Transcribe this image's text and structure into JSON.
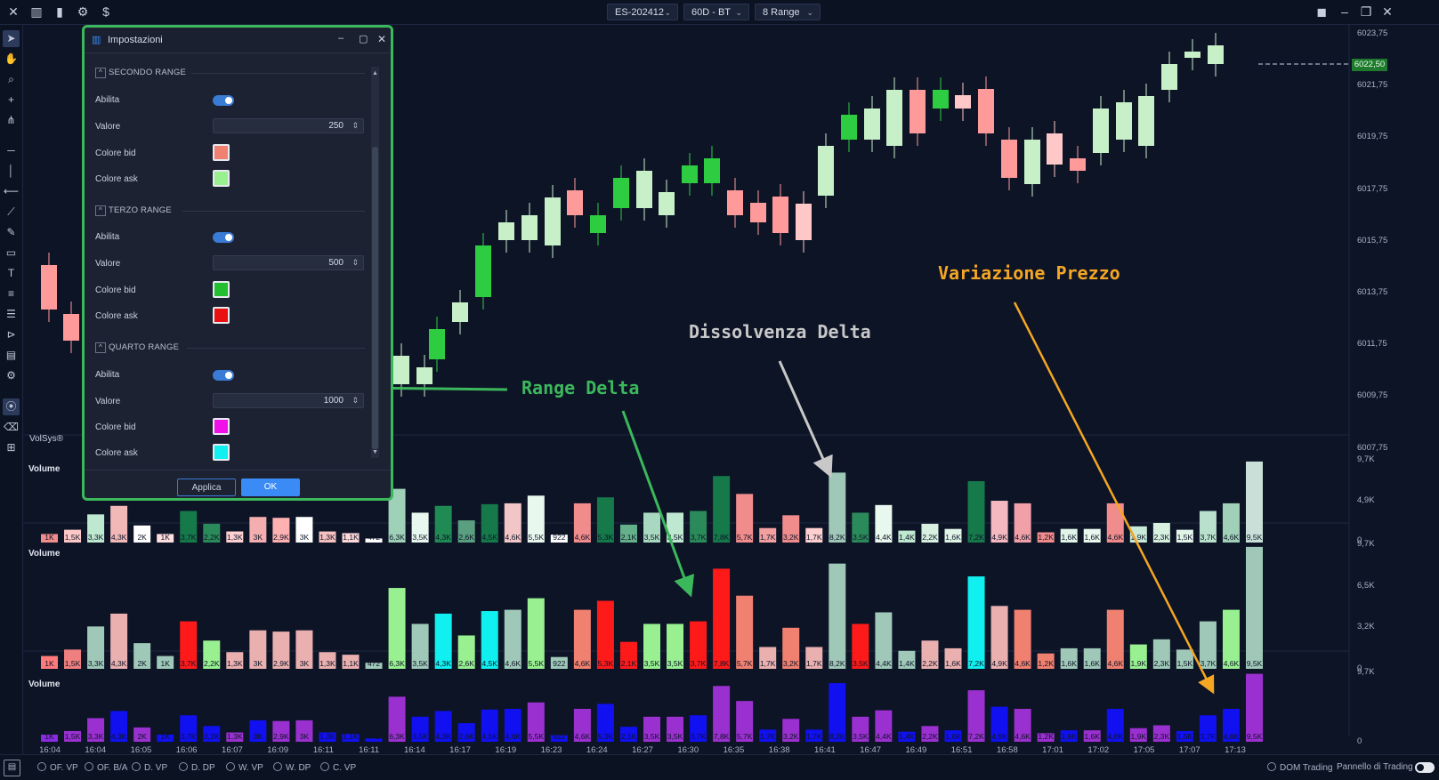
{
  "toolbar": {
    "symbol": "ES-202412",
    "timeframe": "60D - BT",
    "bar_type": "8 Range"
  },
  "dialog": {
    "title": "Impostazioni",
    "sections": [
      {
        "heading": "SECONDO RANGE",
        "enable_label": "Abilita",
        "value_label": "Valore",
        "value": "250",
        "bid_label": "Colore bid",
        "bid_color": "#f08070",
        "ask_label": "Colore ask",
        "ask_color": "#98f090"
      },
      {
        "heading": "TERZO RANGE",
        "enable_label": "Abilita",
        "value_label": "Valore",
        "value": "500",
        "bid_label": "Colore bid",
        "bid_color": "#22c030",
        "ask_label": "Colore ask",
        "ask_color": "#e81010"
      },
      {
        "heading": "QUARTO RANGE",
        "enable_label": "Abilita",
        "value_label": "Valore",
        "value": "1000",
        "bid_label": "Colore bid",
        "bid_color": "#f010e8",
        "ask_label": "Colore ask",
        "ask_color": "#10f0f0"
      }
    ],
    "apply_label": "Applica",
    "ok_label": "OK"
  },
  "indicator_label": "VolSys®",
  "annotations": {
    "range_delta": "Range Delta",
    "dissolvenza_delta": "Dissolvenza Delta",
    "variazione_prezzo": "Variazione Prezzo"
  },
  "colors": {
    "range_delta": "#3cb85c",
    "dissolvenza_delta": "#c8c8c8",
    "variazione_prezzo": "#f5a623"
  },
  "price_axis": {
    "labels": [
      "6023,75",
      "6021,75",
      "6019,75",
      "6017,75",
      "6015,75",
      "6013,75",
      "6011,75",
      "6009,75",
      "6007,75"
    ],
    "current_price": "6022,50"
  },
  "volume_panes": [
    {
      "title": "Volume",
      "axis": [
        "9,7K",
        "4,9K",
        "0"
      ]
    },
    {
      "title": "Volume",
      "axis": [
        "9,7K",
        "6,5K",
        "3,2K",
        "0"
      ]
    },
    {
      "title": "Volume",
      "axis": [
        "9,7K",
        "0"
      ]
    }
  ],
  "bottom_bar": {
    "items": [
      "OF. VP",
      "OF. B/A",
      "D. VP",
      "D. DP",
      "W. VP",
      "W. DP",
      "C. VP"
    ],
    "dom_trading": "DOM Trading",
    "pannello": "Pannello di Trading"
  },
  "chart_data": {
    "type": "table",
    "time_labels": [
      "16:04",
      "16:04",
      "16:05",
      "16:06",
      "16:07",
      "16:09",
      "16:11",
      "16:11",
      "16:14",
      "16:17",
      "16:19",
      "16:23",
      "16:24",
      "16:27",
      "16:30",
      "16:35",
      "16:38",
      "16:41",
      "16:47",
      "16:49",
      "16:51",
      "16:58",
      "17:01",
      "17:02",
      "17:05",
      "17:07",
      "17:13"
    ],
    "volume_labels": [
      "1K",
      "1,5K",
      "3,3K",
      "4,3K",
      "2K",
      "1K",
      "3,7K",
      "2,2K",
      "1,3K",
      "3K",
      "2,9K",
      "3K",
      "1,3K",
      "1,1K",
      "472",
      "6,3K",
      "3,5K",
      "4,3K",
      "2,6K",
      "4,5K",
      "4,6K",
      "5,5K",
      "922",
      "4,6K",
      "5,3K",
      "2,1K",
      "3,5K",
      "3,5K",
      "3,7K",
      "7,8K",
      "5,7K",
      "1,7K",
      "3,2K",
      "1,7K",
      "8,2K",
      "3,5K",
      "4,4K",
      "1,4K",
      "2,2K",
      "1,6K",
      "7,2K",
      "4,9K",
      "4,6K",
      "1,2K",
      "1,6K",
      "1,6K",
      "4,6K",
      "1,9K",
      "2,3K",
      "1,5K",
      "3,7K",
      "4,6K",
      "9,5K"
    ],
    "volume_values": [
      1.0,
      1.5,
      3.3,
      4.3,
      2.0,
      1.0,
      3.7,
      2.2,
      1.3,
      3.0,
      2.9,
      3.0,
      1.3,
      1.1,
      0.472,
      6.3,
      3.5,
      4.3,
      2.6,
      4.5,
      4.6,
      5.5,
      0.922,
      4.6,
      5.3,
      2.1,
      3.5,
      3.5,
      3.7,
      7.8,
      5.7,
      1.7,
      3.2,
      1.7,
      8.2,
      3.5,
      4.4,
      1.4,
      2.2,
      1.6,
      7.2,
      4.9,
      4.6,
      1.2,
      1.6,
      1.6,
      4.6,
      1.9,
      2.3,
      1.5,
      3.7,
      4.6,
      9.5
    ]
  }
}
